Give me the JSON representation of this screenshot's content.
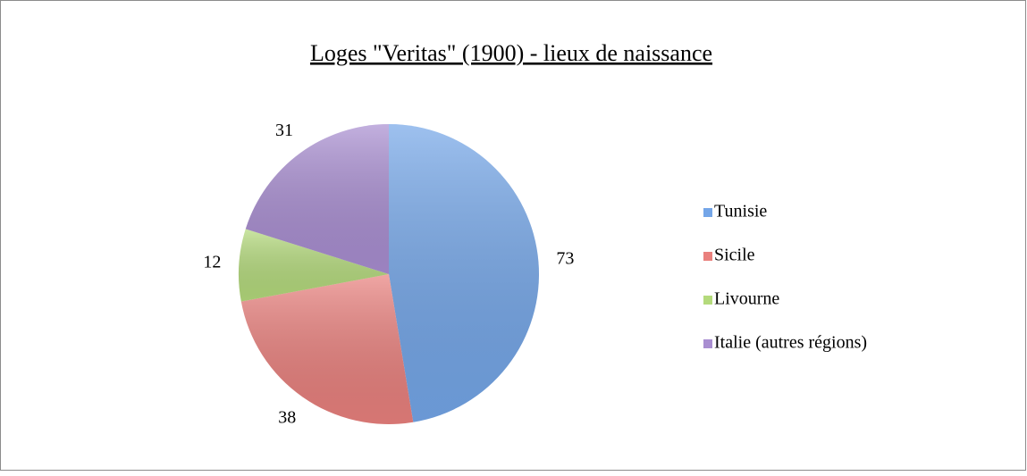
{
  "chart_data": {
    "type": "pie",
    "title": "Loges \"Veritas\" (1900) - lieux de naissance",
    "categories": [
      "Tunisie",
      "Sicile",
      "Livourne",
      "Italie (autres régions)"
    ],
    "values": [
      73,
      38,
      12,
      31
    ],
    "colors": [
      "#74a6e8",
      "#e9807d",
      "#b4da7c",
      "#a98ed1"
    ],
    "legend": "right"
  }
}
